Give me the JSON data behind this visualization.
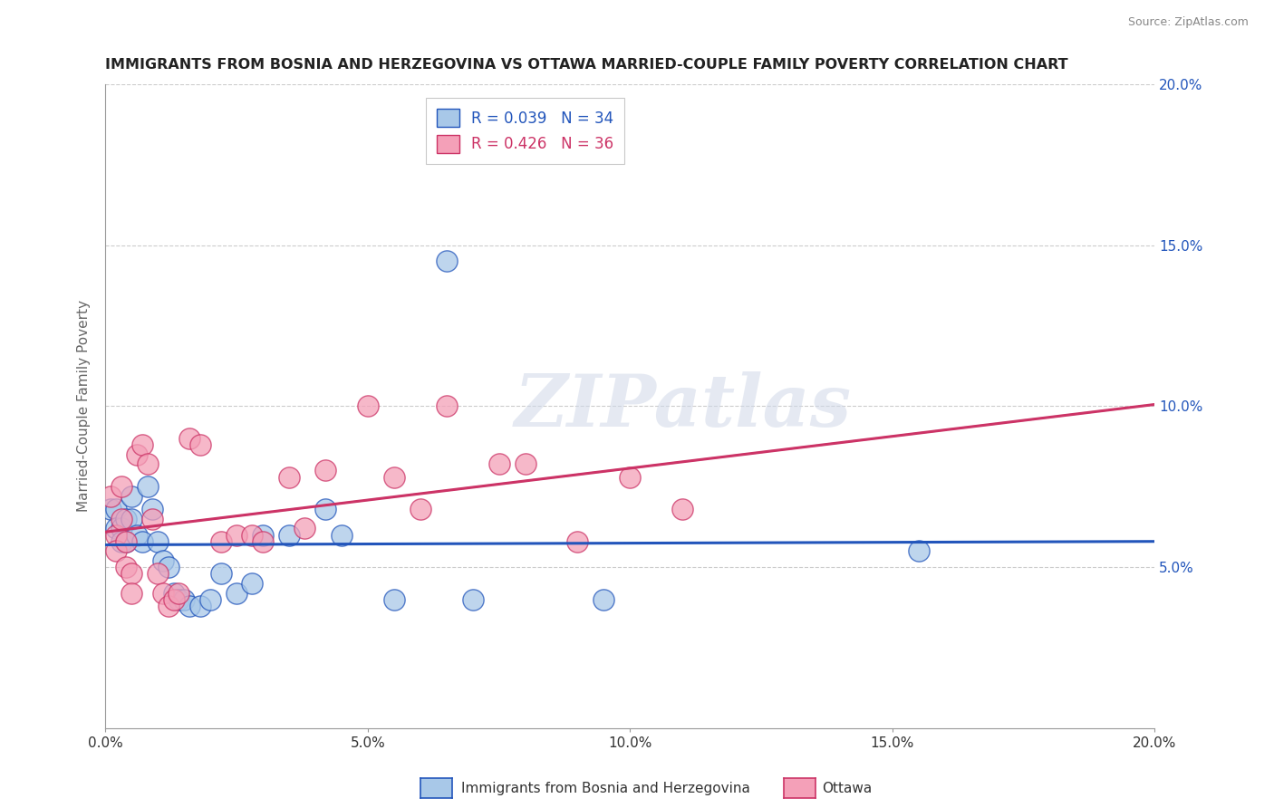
{
  "title": "IMMIGRANTS FROM BOSNIA AND HERZEGOVINA VS OTTAWA MARRIED-COUPLE FAMILY POVERTY CORRELATION CHART",
  "source": "Source: ZipAtlas.com",
  "ylabel": "Married-Couple Family Poverty",
  "xlabel": "",
  "legend_label1": "Immigrants from Bosnia and Herzegovina",
  "legend_label2": "Ottawa",
  "r1": 0.039,
  "n1": 34,
  "r2": 0.426,
  "n2": 36,
  "xlim": [
    0.0,
    0.2
  ],
  "ylim": [
    0.0,
    0.2
  ],
  "xticks": [
    0.0,
    0.05,
    0.1,
    0.15,
    0.2
  ],
  "yticks": [
    0.05,
    0.1,
    0.15,
    0.2
  ],
  "ytick_labels_right": [
    "5.0%",
    "10.0%",
    "15.0%",
    "20.0%"
  ],
  "xtick_labels": [
    "0.0%",
    "5.0%",
    "10.0%",
    "15.0%",
    "20.0%"
  ],
  "color1": "#a8c8e8",
  "color2": "#f4a0b8",
  "line_color1": "#2255bb",
  "line_color2": "#cc3366",
  "background_color": "#ffffff",
  "watermark": "ZIPatlas",
  "blue_dots": [
    [
      0.001,
      0.068
    ],
    [
      0.002,
      0.068
    ],
    [
      0.002,
      0.062
    ],
    [
      0.003,
      0.062
    ],
    [
      0.003,
      0.058
    ],
    [
      0.004,
      0.065
    ],
    [
      0.004,
      0.058
    ],
    [
      0.005,
      0.072
    ],
    [
      0.005,
      0.065
    ],
    [
      0.006,
      0.06
    ],
    [
      0.007,
      0.058
    ],
    [
      0.008,
      0.075
    ],
    [
      0.009,
      0.068
    ],
    [
      0.01,
      0.058
    ],
    [
      0.011,
      0.052
    ],
    [
      0.012,
      0.05
    ],
    [
      0.013,
      0.042
    ],
    [
      0.014,
      0.04
    ],
    [
      0.015,
      0.04
    ],
    [
      0.016,
      0.038
    ],
    [
      0.018,
      0.038
    ],
    [
      0.02,
      0.04
    ],
    [
      0.022,
      0.048
    ],
    [
      0.025,
      0.042
    ],
    [
      0.028,
      0.045
    ],
    [
      0.03,
      0.06
    ],
    [
      0.035,
      0.06
    ],
    [
      0.042,
      0.068
    ],
    [
      0.045,
      0.06
    ],
    [
      0.055,
      0.04
    ],
    [
      0.065,
      0.145
    ],
    [
      0.07,
      0.04
    ],
    [
      0.095,
      0.04
    ],
    [
      0.155,
      0.055
    ]
  ],
  "pink_dots": [
    [
      0.001,
      0.072
    ],
    [
      0.002,
      0.06
    ],
    [
      0.002,
      0.055
    ],
    [
      0.003,
      0.075
    ],
    [
      0.003,
      0.065
    ],
    [
      0.004,
      0.058
    ],
    [
      0.004,
      0.05
    ],
    [
      0.005,
      0.048
    ],
    [
      0.005,
      0.042
    ],
    [
      0.006,
      0.085
    ],
    [
      0.007,
      0.088
    ],
    [
      0.008,
      0.082
    ],
    [
      0.009,
      0.065
    ],
    [
      0.01,
      0.048
    ],
    [
      0.011,
      0.042
    ],
    [
      0.012,
      0.038
    ],
    [
      0.013,
      0.04
    ],
    [
      0.014,
      0.042
    ],
    [
      0.016,
      0.09
    ],
    [
      0.018,
      0.088
    ],
    [
      0.022,
      0.058
    ],
    [
      0.025,
      0.06
    ],
    [
      0.028,
      0.06
    ],
    [
      0.03,
      0.058
    ],
    [
      0.035,
      0.078
    ],
    [
      0.038,
      0.062
    ],
    [
      0.042,
      0.08
    ],
    [
      0.05,
      0.1
    ],
    [
      0.055,
      0.078
    ],
    [
      0.06,
      0.068
    ],
    [
      0.065,
      0.1
    ],
    [
      0.075,
      0.082
    ],
    [
      0.08,
      0.082
    ],
    [
      0.09,
      0.058
    ],
    [
      0.1,
      0.078
    ],
    [
      0.11,
      0.068
    ]
  ]
}
